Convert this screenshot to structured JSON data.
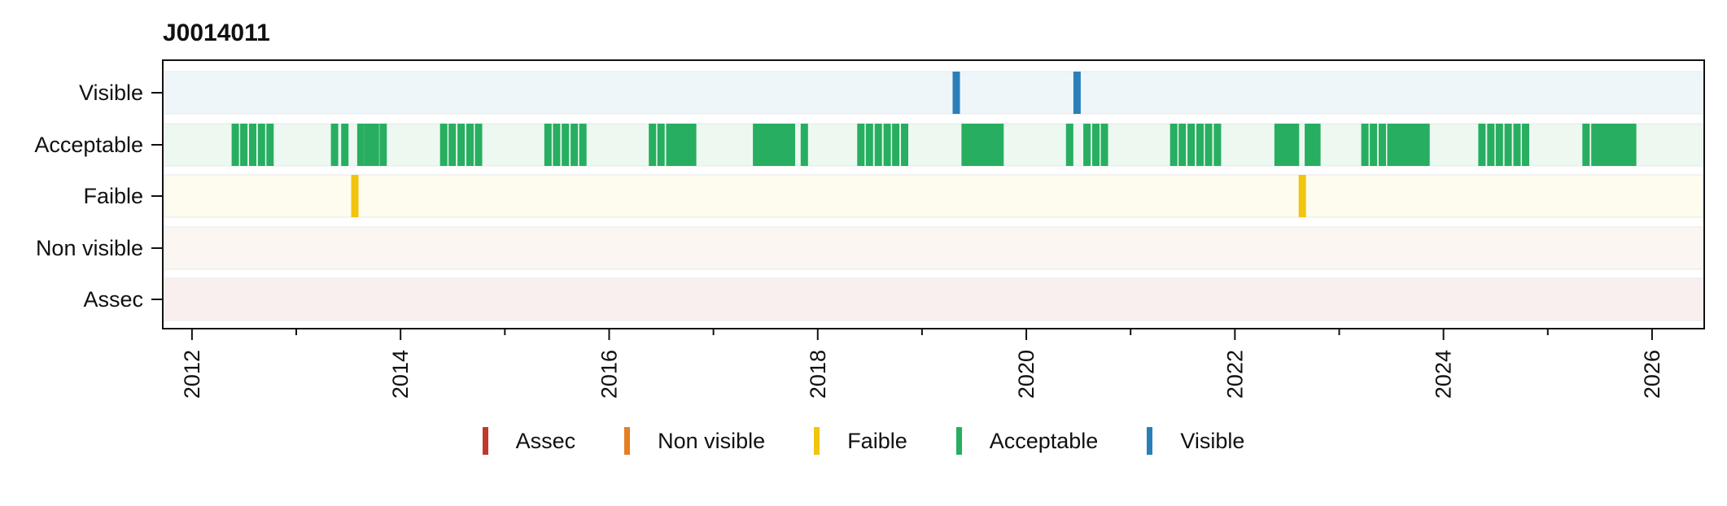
{
  "chart_data": {
    "type": "timeline",
    "title": "J0014011",
    "xlabel": "",
    "ylabel": "",
    "xlim": [
      2011.72,
      2026.5
    ],
    "x_ticks": [
      "2012",
      "2014",
      "2016",
      "2018",
      "2020",
      "2022",
      "2024",
      "2026"
    ],
    "categories": [
      "Visible",
      "Acceptable",
      "Faible",
      "Non visible",
      "Assec"
    ],
    "colors": {
      "Assec": "#c0392b",
      "Non visible": "#e67e22",
      "Faible": "#f1c40f",
      "Acceptable": "#27ae60",
      "Visible": "#2980b9"
    },
    "band_colors": {
      "Visible": "#eff6fa",
      "Acceptable": "#edf8f1",
      "Faible": "#fefcee",
      "Non visible": "#fbf6f1",
      "Assec": "#f9efee"
    },
    "grid": false,
    "legend_position": "bottom",
    "series": [
      {
        "name": "Visible",
        "dates": [
          "2019-05-01",
          "2020-06-27"
        ]
      },
      {
        "name": "Acceptable",
        "dates": [
          "2012-06-01",
          "2012-07-01",
          "2012-08-01",
          "2012-09-01",
          "2012-10-01",
          "2013-05-15",
          "2013-06-20",
          "2013-08-15",
          "2013-09-10",
          "2013-10-05",
          "2013-11-01",
          "2014-06-01",
          "2014-07-01",
          "2014-08-01",
          "2014-09-01",
          "2014-10-01",
          "2015-06-01",
          "2015-07-01",
          "2015-08-01",
          "2015-09-01",
          "2015-10-01",
          "2016-06-01",
          "2016-07-01",
          "2016-08-01",
          "2016-08-20",
          "2016-09-10",
          "2016-10-01",
          "2016-10-20",
          "2017-06-01",
          "2017-06-15",
          "2017-07-01",
          "2017-07-15",
          "2017-08-01",
          "2017-08-15",
          "2017-09-01",
          "2017-09-15",
          "2017-10-01",
          "2017-11-15",
          "2018-06-01",
          "2018-07-01",
          "2018-08-01",
          "2018-09-01",
          "2018-10-01",
          "2018-11-01",
          "2019-06-01",
          "2019-06-15",
          "2019-07-01",
          "2019-07-15",
          "2019-08-01",
          "2019-08-15",
          "2019-09-01",
          "2019-09-15",
          "2019-10-01",
          "2020-06-01",
          "2020-08-01",
          "2020-09-01",
          "2020-10-01",
          "2021-06-01",
          "2021-07-01",
          "2021-08-01",
          "2021-09-01",
          "2021-10-01",
          "2021-11-01",
          "2022-06-01",
          "2022-06-15",
          "2022-07-01",
          "2022-07-15",
          "2022-08-01",
          "2022-09-15",
          "2022-10-01",
          "2022-10-15",
          "2023-04-01",
          "2023-05-01",
          "2023-06-01",
          "2023-07-01",
          "2023-07-20",
          "2023-08-10",
          "2023-09-01",
          "2023-09-20",
          "2023-10-10",
          "2023-11-01",
          "2024-05-15",
          "2024-06-15",
          "2024-07-15",
          "2024-08-15",
          "2024-09-15",
          "2024-10-15",
          "2025-05-15",
          "2025-06-15",
          "2025-07-10",
          "2025-07-30",
          "2025-08-20",
          "2025-09-10",
          "2025-10-01",
          "2025-10-25"
        ]
      },
      {
        "name": "Faible",
        "dates": [
          "2013-07-25",
          "2022-08-25"
        ]
      },
      {
        "name": "Non visible",
        "dates": []
      },
      {
        "name": "Assec",
        "dates": []
      }
    ],
    "legend_order": [
      "Assec",
      "Non visible",
      "Faible",
      "Acceptable",
      "Visible"
    ]
  }
}
